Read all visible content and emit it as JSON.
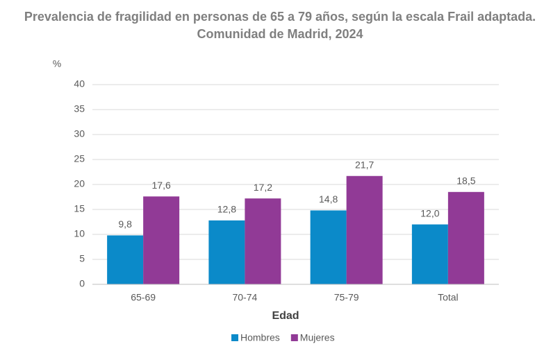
{
  "chart_data": {
    "type": "bar",
    "title": "Prevalencia de fragilidad en personas de 65 a 79 años, según la escala Frail adaptada.",
    "subtitle": "Comunidad de Madrid, 2024",
    "y_label": "%",
    "x_label": "Edad",
    "categories": [
      "65-69",
      "70-74",
      "75-79",
      "Total"
    ],
    "series": [
      {
        "name": "Hombres",
        "color": "#0b8ac9",
        "values": [
          9.8,
          12.8,
          14.8,
          12.0
        ],
        "value_labels": [
          "9,8",
          "12,8",
          "14,8",
          "12,0"
        ]
      },
      {
        "name": "Mujeres",
        "color": "#913a96",
        "values": [
          17.6,
          17.2,
          21.7,
          18.5
        ],
        "value_labels": [
          "17,6",
          "17,2",
          "21,7",
          "18,5"
        ]
      }
    ],
    "ylim": [
      0,
      40
    ],
    "yticks": [
      0,
      5,
      10,
      15,
      20,
      25,
      30,
      35,
      40
    ],
    "grid": true,
    "legend": "bottom"
  }
}
